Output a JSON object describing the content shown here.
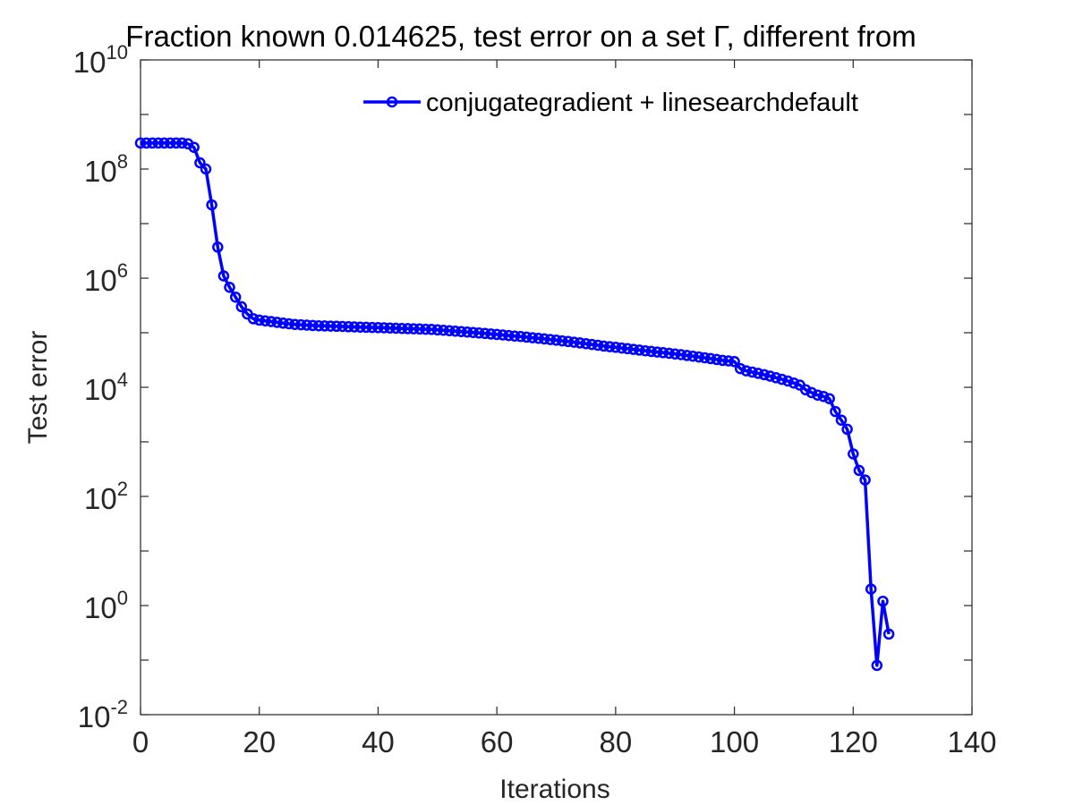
{
  "chart_data": {
    "type": "line",
    "title": "Fraction known 0.014625, test error on a set  Γ, different from",
    "xlabel": "Iterations",
    "ylabel": "Test error",
    "xlim": [
      0,
      140
    ],
    "ylim_exponent": [
      -2,
      10
    ],
    "yscale": "log",
    "x_ticks": [
      "0",
      "20",
      "40",
      "60",
      "80",
      "100",
      "120",
      "140"
    ],
    "y_ticks": [
      {
        "base": "10",
        "exp": "-2"
      },
      {
        "base": "10",
        "exp": "0"
      },
      {
        "base": "10",
        "exp": "2"
      },
      {
        "base": "10",
        "exp": "4"
      },
      {
        "base": "10",
        "exp": "6"
      },
      {
        "base": "10",
        "exp": "8"
      },
      {
        "base": "10",
        "exp": "10"
      }
    ],
    "legend_position": "top-right",
    "grid": false,
    "series": [
      {
        "name": "conjugategradient + linesearchdefault",
        "color": "#0000ff",
        "marker": "circle",
        "x": [
          0,
          1,
          2,
          3,
          4,
          5,
          6,
          7,
          8,
          9,
          10,
          11,
          12,
          13,
          14,
          15,
          16,
          17,
          18,
          19,
          20,
          21,
          22,
          23,
          24,
          25,
          26,
          27,
          28,
          29,
          30,
          31,
          32,
          33,
          34,
          35,
          36,
          37,
          38,
          39,
          40,
          41,
          42,
          43,
          44,
          45,
          46,
          47,
          48,
          49,
          50,
          51,
          52,
          53,
          54,
          55,
          56,
          57,
          58,
          59,
          60,
          61,
          62,
          63,
          64,
          65,
          66,
          67,
          68,
          69,
          70,
          71,
          72,
          73,
          74,
          75,
          76,
          77,
          78,
          79,
          80,
          81,
          82,
          83,
          84,
          85,
          86,
          87,
          88,
          89,
          90,
          91,
          92,
          93,
          94,
          95,
          96,
          97,
          98,
          99,
          100,
          101,
          102,
          103,
          104,
          105,
          106,
          107,
          108,
          109,
          110,
          111,
          112,
          113,
          114,
          115,
          116,
          117,
          118,
          119,
          120,
          121,
          122,
          123,
          124,
          125,
          126
        ],
        "y": [
          300000000,
          300000000,
          300000000,
          300000000,
          300000000,
          300000000,
          300000000,
          300000000,
          290000000,
          250000000,
          130000000,
          100000000,
          22000000,
          3700000,
          1100000,
          680000,
          450000,
          300000,
          220000,
          180000,
          170000,
          165000,
          160000,
          155000,
          150000,
          146000,
          142000,
          140000,
          138000,
          136000,
          134000,
          133000,
          132000,
          131000,
          130000,
          129000,
          128000,
          127000,
          126000,
          125000,
          124000,
          123000,
          122000,
          121000,
          120000,
          119000,
          118000,
          117000,
          116000,
          115000,
          113000,
          111000,
          109000,
          107000,
          105000,
          103000,
          101000,
          99000,
          97000,
          95000,
          93000,
          91000,
          89000,
          87000,
          85000,
          83000,
          81000,
          79000,
          77000,
          75000,
          73000,
          71000,
          69000,
          67000,
          65000,
          63000,
          61000,
          59000,
          57000,
          55500,
          54000,
          52500,
          51000,
          49500,
          48000,
          46700,
          45500,
          44300,
          43100,
          42000,
          40800,
          39600,
          38400,
          37200,
          36000,
          34800,
          33600,
          32400,
          31200,
          30500,
          29500,
          22000,
          20000,
          19000,
          18000,
          17000,
          16000,
          15000,
          14000,
          13000,
          12000,
          11000,
          9000,
          8000,
          7200,
          6800,
          6200,
          3600,
          2500,
          1700,
          600,
          300,
          200,
          2,
          0.08,
          1.2,
          0.3
        ]
      }
    ]
  }
}
